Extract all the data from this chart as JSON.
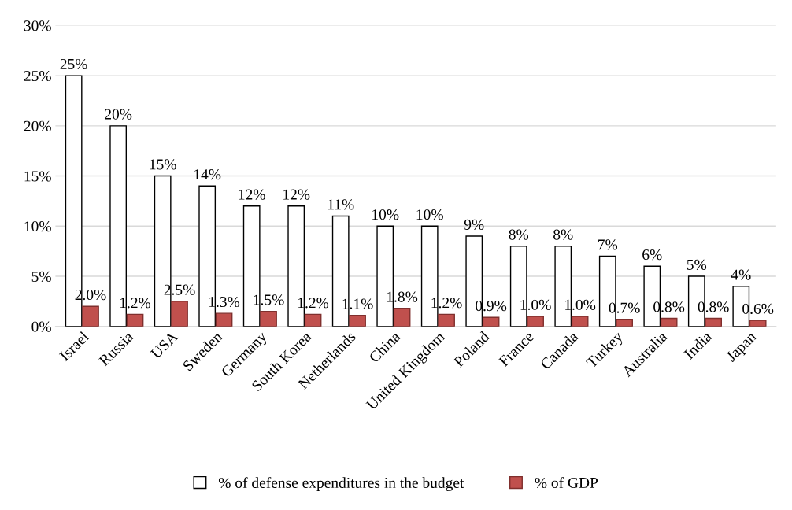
{
  "chart_data": {
    "type": "bar",
    "categories": [
      "Israel",
      "Russia",
      "USA",
      "Sweden",
      "Germany",
      "South Korea",
      "Netherlands",
      "China",
      "United Kingdom",
      "Poland",
      "France",
      "Canada",
      "Turkey",
      "Australia",
      "India",
      "Japan"
    ],
    "series": [
      {
        "name": "% of defense expenditures in the budget",
        "color": "#ffffff",
        "values": [
          25,
          20,
          15,
          14,
          12,
          12,
          11,
          10,
          10,
          9,
          8,
          8,
          7,
          6,
          5,
          4
        ],
        "value_labels": [
          "25%",
          "20%",
          "15%",
          "14%",
          "12%",
          "12%",
          "11%",
          "10%",
          "10%",
          "9%",
          "8%",
          "8%",
          "7%",
          "6%",
          "5%",
          "4%"
        ]
      },
      {
        "name": "% of GDP",
        "color": "#c0504d",
        "values": [
          2.0,
          1.2,
          2.5,
          1.3,
          1.5,
          1.2,
          1.1,
          1.8,
          1.2,
          0.9,
          1.0,
          1.0,
          0.7,
          0.8,
          0.8,
          0.6
        ],
        "value_labels": [
          "2.0%",
          "1.2%",
          "2.5%",
          "1.3%",
          "1.5%",
          "1.2%",
          "1.1%",
          "1.8%",
          "1.2%",
          "0.9%",
          "1.0%",
          "1.0%",
          "0.7%",
          "0.8%",
          "0.8%",
          "0.6%"
        ]
      }
    ],
    "ylim": [
      0,
      30
    ],
    "yticks": [
      {
        "value": 0,
        "label": "0%"
      },
      {
        "value": 5,
        "label": "5%"
      },
      {
        "value": 10,
        "label": "10%"
      },
      {
        "value": 15,
        "label": "15%"
      },
      {
        "value": 20,
        "label": "20%"
      },
      {
        "value": 25,
        "label": "25%"
      },
      {
        "value": 30,
        "label": "30%"
      }
    ],
    "grid": "y",
    "legend": "bottom"
  }
}
